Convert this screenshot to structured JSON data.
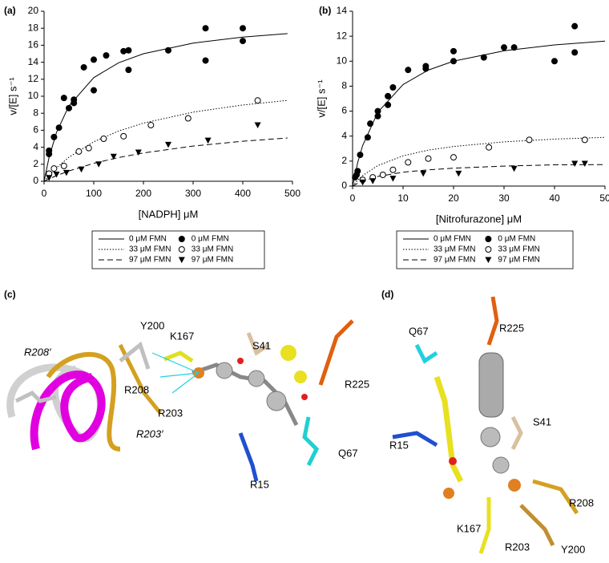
{
  "chart_data": [
    {
      "type": "scatter",
      "label": "(a)",
      "x_label": "[NADPH] μM",
      "y_label": "v/[E] s⁻¹",
      "xlim": [
        0,
        500
      ],
      "xticks": [
        0,
        100,
        200,
        300,
        400,
        500
      ],
      "ylim": [
        0,
        20
      ],
      "yticks": [
        0,
        2,
        4,
        6,
        8,
        10,
        12,
        14,
        16,
        18,
        20
      ],
      "series": [
        {
          "name": "0 μM FMN",
          "color": "#000000",
          "mark": "solid-line",
          "x": [
            0,
            10,
            25,
            50,
            100,
            150,
            200,
            300,
            400,
            490
          ],
          "values": [
            0,
            2.79,
            5.74,
            8.86,
            12.19,
            13.93,
            15,
            16.25,
            16.96,
            17.37
          ]
        },
        {
          "name": "33 μM FMN",
          "color": "#000000",
          "mark": "dotted-line",
          "x": [
            0,
            10,
            25,
            50,
            100,
            150,
            200,
            300,
            400,
            490
          ],
          "values": [
            0,
            0.68,
            1.59,
            2.83,
            4.64,
            5.91,
            6.84,
            8.13,
            8.97,
            9.51
          ]
        },
        {
          "name": "97 μM FMN",
          "color": "#000000",
          "mark": "dashed-line",
          "x": [
            0,
            10,
            25,
            50,
            100,
            150,
            200,
            300,
            400,
            490
          ],
          "values": [
            0,
            0.28,
            0.66,
            1.21,
            2.11,
            2.79,
            3.33,
            4.14,
            4.71,
            5.09
          ]
        },
        {
          "name": "0 μM FMN",
          "color": "#000000",
          "mark": "filled-circle",
          "x": [
            10,
            10,
            20,
            30,
            40,
            50,
            60,
            60,
            80,
            100,
            100,
            125,
            160,
            170,
            170,
            250,
            325,
            325,
            400,
            400
          ],
          "values": [
            3.2,
            3.6,
            5.2,
            6.3,
            9.8,
            8.6,
            9.2,
            9.6,
            13.4,
            14.3,
            10.7,
            14.8,
            15.3,
            15.4,
            13.1,
            15.4,
            18,
            14.2,
            18,
            16.5
          ]
        },
        {
          "name": "33 μM FMN",
          "color": "#000000",
          "mark": "open-circle",
          "x": [
            10,
            20,
            40,
            70,
            90,
            120,
            160,
            215,
            290,
            430
          ],
          "values": [
            0.9,
            1.5,
            1.8,
            3.5,
            3.9,
            5,
            5.3,
            6.6,
            7.4,
            9.5
          ]
        },
        {
          "name": "97 μM FMN",
          "color": "#000000",
          "mark": "triangle",
          "x": [
            10,
            25,
            45,
            75,
            110,
            140,
            190,
            250,
            330,
            430
          ],
          "values": [
            0.4,
            0.8,
            1,
            1.4,
            2,
            2.9,
            3.4,
            4.3,
            4.8,
            6.6
          ]
        }
      ]
    },
    {
      "type": "scatter",
      "label": "(b)",
      "x_label": "[Nitrofurazone] μM",
      "y_label": "v/[E] s⁻¹",
      "xlim": [
        0,
        50
      ],
      "xticks": [
        0,
        10,
        20,
        30,
        40,
        50
      ],
      "ylim": [
        0,
        14
      ],
      "yticks": [
        0,
        2,
        4,
        6,
        8,
        10,
        12,
        14
      ],
      "series": [
        {
          "name": "0 μM FMN",
          "color": "#000000",
          "mark": "solid-line",
          "x": [
            0,
            1,
            2,
            5,
            10,
            15,
            20,
            30,
            40,
            50
          ],
          "values": [
            0,
            1.86,
            3.25,
            5.91,
            8.13,
            9.29,
            10,
            10.83,
            11.3,
            11.61
          ]
        },
        {
          "name": "33 μM FMN",
          "color": "#000000",
          "mark": "dotted-line",
          "x": [
            0,
            1,
            2,
            5,
            10,
            15,
            20,
            30,
            40,
            50
          ],
          "values": [
            0,
            0.46,
            0.84,
            1.64,
            2.42,
            2.88,
            3.17,
            3.54,
            3.76,
            3.9
          ]
        },
        {
          "name": "97 μM FMN",
          "color": "#000000",
          "mark": "dashed-line",
          "x": [
            0,
            1,
            2,
            5,
            10,
            15,
            20,
            30,
            40,
            50
          ],
          "values": [
            0,
            0.22,
            0.4,
            0.77,
            1.11,
            1.3,
            1.43,
            1.6,
            1.7,
            1.72
          ]
        },
        {
          "name": "0 μM FMN",
          "color": "#000000",
          "mark": "filled-circle",
          "x": [
            0.5,
            0.8,
            1,
            1.5,
            3,
            3.5,
            5,
            5,
            7,
            7,
            8,
            11,
            14.5,
            14.5,
            20,
            20,
            26,
            30,
            32,
            40,
            44,
            44
          ],
          "values": [
            0.7,
            0.9,
            1.2,
            2.5,
            3.9,
            5,
            5.6,
            6,
            6.5,
            7.2,
            7.9,
            9.3,
            9.4,
            9.6,
            10,
            10.8,
            10.3,
            11.1,
            11.1,
            10,
            12.8,
            10.7
          ]
        },
        {
          "name": "33 μM FMN",
          "color": "#000000",
          "mark": "open-circle",
          "x": [
            2,
            4,
            6,
            8,
            11,
            15,
            20,
            27,
            35,
            46
          ],
          "values": [
            0.5,
            0.7,
            0.9,
            1.3,
            1.9,
            2.2,
            2.3,
            3.1,
            3.7,
            3.7
          ]
        },
        {
          "name": "97 μM FMN",
          "color": "#000000",
          "mark": "triangle",
          "x": [
            2,
            4,
            8,
            14,
            21,
            32,
            44,
            46
          ],
          "values": [
            0.3,
            0.4,
            0.6,
            1,
            1,
            1.4,
            1.8,
            1.8
          ]
        }
      ]
    }
  ],
  "panels": {
    "c": {
      "label": "(c)",
      "residues": [
        "R208′",
        "Y200",
        "K167",
        "R208",
        "R203",
        "R203′",
        "S41",
        "R225",
        "Q67",
        "R15"
      ]
    },
    "d": {
      "label": "(d)",
      "residues": [
        "Q67",
        "R225",
        "S41",
        "R15",
        "R208",
        "K167",
        "R203",
        "Y200"
      ]
    }
  }
}
